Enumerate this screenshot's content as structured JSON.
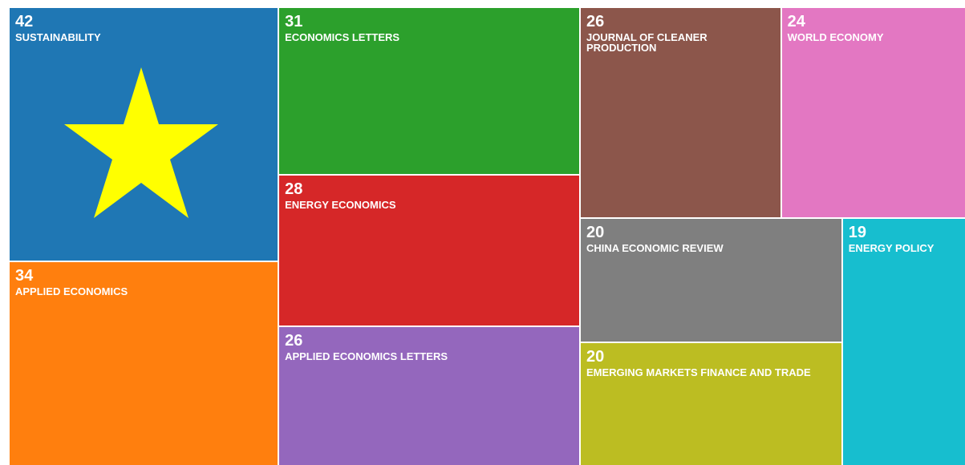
{
  "chart_data": {
    "type": "treemap",
    "categories": [
      "SUSTAINABILITY",
      "APPLIED ECONOMICS",
      "ECONOMICS LETTERS",
      "ENERGY ECONOMICS",
      "APPLIED ECONOMICS LETTERS",
      "JOURNAL OF CLEANER PRODUCTION",
      "WORLD ECONOMY",
      "CHINA ECONOMIC REVIEW",
      "EMERGING MARKETS FINANCE AND TRADE",
      "ENERGY POLICY"
    ],
    "values": [
      42,
      34,
      31,
      28,
      26,
      26,
      24,
      20,
      20,
      19
    ],
    "colors": [
      "#1f77b4",
      "#ff7f0e",
      "#2ca02c",
      "#d62728",
      "#9467bd",
      "#8c564b",
      "#e377c2",
      "#7f7f7f",
      "#bcbd22",
      "#17becf"
    ]
  }
}
